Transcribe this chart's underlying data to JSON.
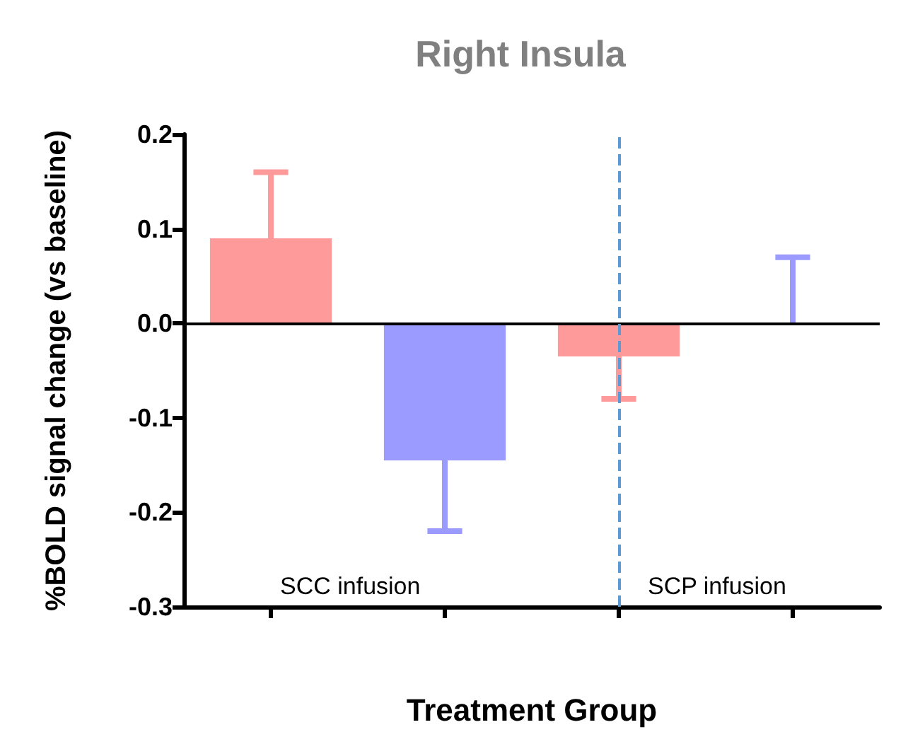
{
  "chart_data": {
    "type": "bar",
    "title": "Right Insula",
    "xlabel": "Treatment Group",
    "ylabel": "%BOLD signal change (vs baseline)",
    "categories": [
      null,
      null,
      null,
      null
    ],
    "values": [
      0.09,
      -0.145,
      -0.035,
      0.0
    ],
    "colors": [
      "#ff9a9a",
      "#9a9aff",
      "#ff9a9a",
      "#9a9aff"
    ],
    "errors": [
      [
        0.09,
        0.16
      ],
      [
        -0.22,
        -0.145
      ],
      [
        -0.08,
        -0.035
      ],
      [
        0.0,
        0.07
      ]
    ],
    "ylim": [
      -0.3,
      0.2
    ],
    "yticks": [
      -0.3,
      -0.2,
      -0.1,
      {
        "value": 0,
        "label": "0.0"
      },
      0.1,
      0.2
    ],
    "grid": false,
    "ref_lines": [
      {
        "axis": "y",
        "value": 0,
        "color": "#000000",
        "line_style": "solid"
      }
    ],
    "annotations": [
      "SCC infusion",
      "SCP infusion"
    ]
  }
}
